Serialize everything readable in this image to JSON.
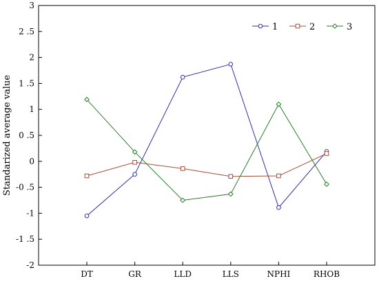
{
  "chart_data": {
    "type": "line",
    "title": "",
    "xlabel": "",
    "ylabel": "Standarized average value",
    "categories": [
      "DT",
      "GR",
      "LLD",
      "LLS",
      "NPHI",
      "RHOB"
    ],
    "ylim": [
      -2,
      3
    ],
    "yticks": [
      3,
      2.5,
      2,
      1.5,
      1,
      0.5,
      0,
      -0.5,
      -1,
      -1.5,
      -2
    ],
    "ytick_labels": [
      "3",
      "2 .5",
      "2",
      "1 .5",
      "1",
      "0 .5",
      "0",
      "-0 .5",
      "-1",
      "-1 .5",
      "-2"
    ],
    "grid": false,
    "legend_position": "top-right",
    "series": [
      {
        "name": "1",
        "color": "#2e2ea8",
        "marker": "circle",
        "values": [
          -1.05,
          -0.25,
          1.62,
          1.87,
          -0.89,
          0.19
        ]
      },
      {
        "name": "2",
        "color": "#a34c3a",
        "marker": "square",
        "values": [
          -0.28,
          -0.02,
          -0.14,
          -0.29,
          -0.28,
          0.15
        ]
      },
      {
        "name": "3",
        "color": "#2a7a2a",
        "marker": "diamond",
        "values": [
          1.19,
          0.18,
          -0.75,
          -0.63,
          1.1,
          -0.44
        ]
      }
    ]
  }
}
